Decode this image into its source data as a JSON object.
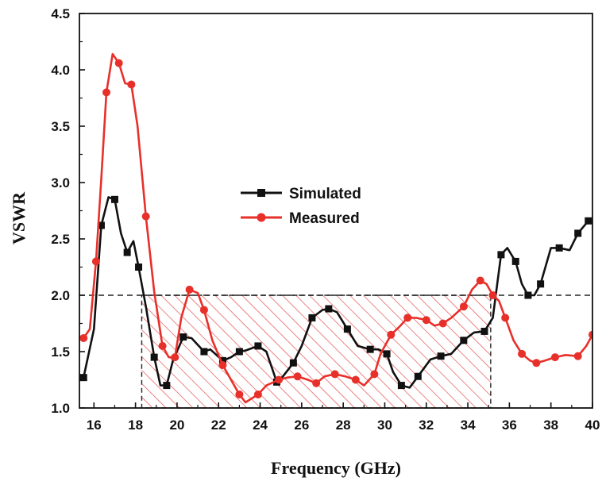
{
  "chart_data": {
    "type": "line",
    "xlabel": "Frequency (GHz)",
    "ylabel": "VSWR",
    "xlim": [
      15.3,
      40
    ],
    "ylim": [
      1.0,
      4.5
    ],
    "xticks": [
      16,
      18,
      20,
      22,
      24,
      26,
      28,
      30,
      32,
      34,
      36,
      38,
      40
    ],
    "yticks": [
      1.0,
      1.5,
      2.0,
      2.5,
      3.0,
      3.5,
      4.0,
      4.5
    ],
    "xtick_labels": [
      "16",
      "18",
      "20",
      "22",
      "24",
      "26",
      "28",
      "30",
      "32",
      "34",
      "36",
      "38",
      "40"
    ],
    "ytick_labels": [
      "1.0",
      "1.5",
      "2.0",
      "2.5",
      "3.0",
      "3.5",
      "4.0",
      "4.5"
    ],
    "reference_line": {
      "y": 2.0,
      "style": "dashed"
    },
    "shaded_region": {
      "x": [
        18.3,
        35.1
      ],
      "y": [
        1.0,
        2.0
      ],
      "pattern": "red diagonal hatch"
    },
    "legend_position": "center",
    "series": [
      {
        "name": "Simulated",
        "color": "#111111",
        "marker": "square",
        "x": [
          15.5,
          16.0,
          16.35,
          16.7,
          17.0,
          17.3,
          17.6,
          17.9,
          18.15,
          18.5,
          18.9,
          19.2,
          19.5,
          19.8,
          20.3,
          20.7,
          21.3,
          21.6,
          22.2,
          22.6,
          23.0,
          23.3,
          23.9,
          24.3,
          24.8,
          25.1,
          25.6,
          26.0,
          26.5,
          27.0,
          27.3,
          27.7,
          28.2,
          28.7,
          29.3,
          29.7,
          30.1,
          30.4,
          30.8,
          31.2,
          31.6,
          32.2,
          32.7,
          33.2,
          33.8,
          34.3,
          34.8,
          35.2,
          35.6,
          35.9,
          36.3,
          36.6,
          36.9,
          37.2,
          37.5,
          38.0,
          38.4,
          38.9,
          39.3,
          39.8
        ],
        "values": [
          1.27,
          1.7,
          2.62,
          2.87,
          2.85,
          2.55,
          2.38,
          2.48,
          2.25,
          1.9,
          1.45,
          1.2,
          1.2,
          1.42,
          1.63,
          1.62,
          1.5,
          1.52,
          1.42,
          1.45,
          1.5,
          1.51,
          1.55,
          1.5,
          1.23,
          1.28,
          1.4,
          1.55,
          1.8,
          1.87,
          1.88,
          1.85,
          1.7,
          1.55,
          1.52,
          1.52,
          1.48,
          1.32,
          1.2,
          1.18,
          1.28,
          1.43,
          1.46,
          1.48,
          1.6,
          1.67,
          1.68,
          1.8,
          2.36,
          2.42,
          2.3,
          2.1,
          2.0,
          2.0,
          2.1,
          2.42,
          2.42,
          2.4,
          2.55,
          2.66
        ]
      },
      {
        "name": "Measured",
        "color": "#e8302a",
        "marker": "circle",
        "x": [
          15.5,
          15.8,
          16.1,
          16.35,
          16.6,
          16.9,
          17.2,
          17.5,
          17.8,
          18.1,
          18.5,
          18.9,
          19.3,
          19.6,
          19.9,
          20.2,
          20.6,
          21.0,
          21.3,
          21.7,
          22.2,
          22.6,
          23.0,
          23.3,
          23.9,
          24.3,
          24.9,
          25.3,
          25.8,
          26.3,
          26.7,
          27.1,
          27.6,
          28.1,
          28.6,
          29.0,
          29.5,
          29.8,
          30.3,
          30.7,
          31.1,
          31.5,
          32.0,
          32.4,
          32.8,
          33.2,
          33.8,
          34.2,
          34.6,
          34.9,
          35.2,
          35.5,
          35.8,
          36.2,
          36.6,
          37.0,
          37.3,
          37.7,
          38.2,
          38.7,
          39.3,
          39.7,
          40.0
        ],
        "values": [
          1.62,
          1.7,
          2.3,
          3.03,
          3.8,
          4.14,
          4.06,
          3.88,
          3.87,
          3.5,
          2.7,
          2.03,
          1.55,
          1.45,
          1.45,
          1.8,
          2.05,
          2.02,
          1.87,
          1.6,
          1.38,
          1.25,
          1.12,
          1.05,
          1.12,
          1.2,
          1.25,
          1.27,
          1.28,
          1.25,
          1.22,
          1.28,
          1.3,
          1.28,
          1.25,
          1.2,
          1.3,
          1.48,
          1.65,
          1.72,
          1.8,
          1.8,
          1.78,
          1.73,
          1.75,
          1.8,
          1.9,
          2.05,
          2.13,
          2.1,
          2.0,
          1.95,
          1.8,
          1.6,
          1.48,
          1.42,
          1.4,
          1.42,
          1.45,
          1.47,
          1.46,
          1.55,
          1.65
        ]
      }
    ]
  }
}
